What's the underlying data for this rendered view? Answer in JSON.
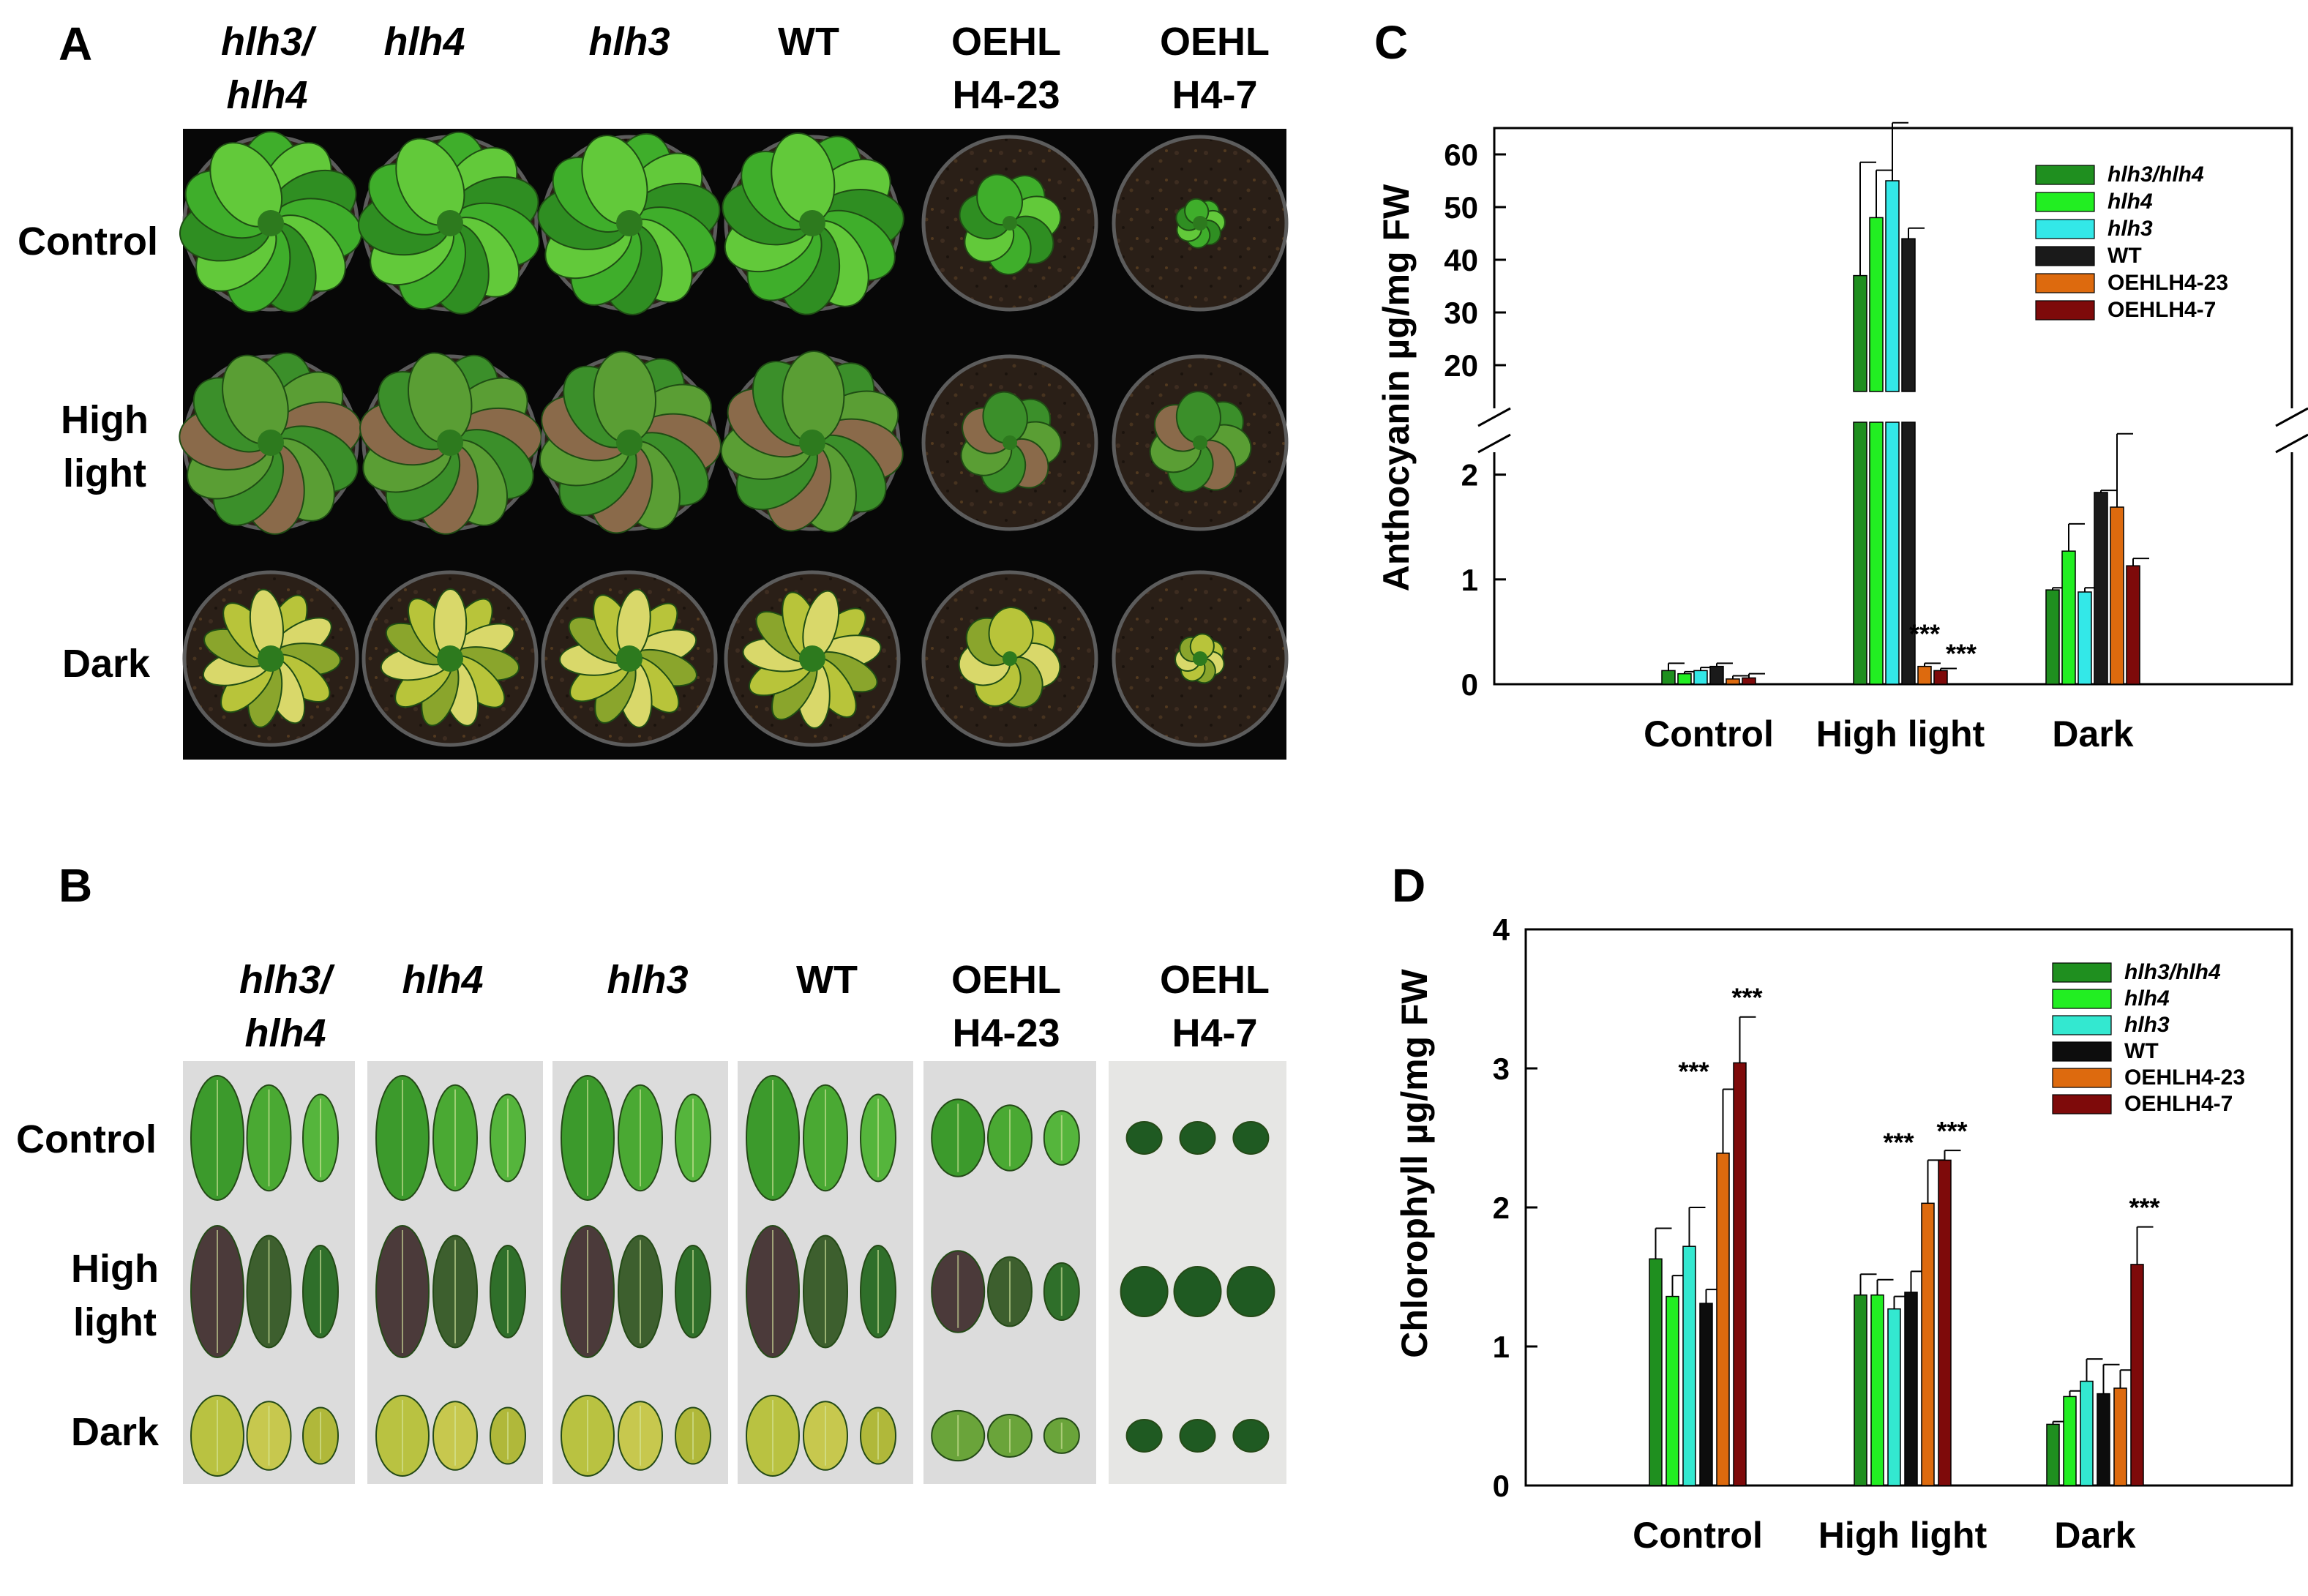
{
  "panel_a": {
    "letter": "A",
    "columns": [
      {
        "line1": "hlh3/",
        "line2": "hlh4",
        "italic": true
      },
      {
        "line1": "hlh4",
        "line2": "",
        "italic": true
      },
      {
        "line1": "hlh3",
        "line2": "",
        "italic": true
      },
      {
        "line1": "WT",
        "line2": "",
        "italic": false
      },
      {
        "line1": "OEHL",
        "line2": "H4-23",
        "italic": false
      },
      {
        "line1": "OEHL",
        "line2": "H4-7",
        "italic": false
      }
    ],
    "rows": [
      {
        "line1": "Control",
        "line2": ""
      },
      {
        "line1": "High",
        "line2": "light"
      },
      {
        "line1": "Dark",
        "line2": ""
      }
    ]
  },
  "panel_b": {
    "letter": "B",
    "columns": [
      {
        "line1": "hlh3/",
        "line2": "hlh4",
        "italic": true
      },
      {
        "line1": "hlh4",
        "line2": "",
        "italic": true
      },
      {
        "line1": "hlh3",
        "line2": "",
        "italic": true
      },
      {
        "line1": "WT",
        "line2": "",
        "italic": false
      },
      {
        "line1": "OEHL",
        "line2": "H4-23",
        "italic": false
      },
      {
        "line1": "OEHL",
        "line2": "H4-7",
        "italic": false
      }
    ],
    "rows": [
      {
        "line1": "Control",
        "line2": ""
      },
      {
        "line1": "High",
        "line2": "light"
      },
      {
        "line1": "Dark",
        "line2": ""
      }
    ]
  },
  "colors": {
    "hlh3_hlh4": "#1f8f1f",
    "hlh4": "#22ee22",
    "hlh3": "#33e8e8",
    "WT": "#1a1a1a",
    "OEHLH4_23": "#dd6a0e",
    "OEHLH4_7": "#7e0a0a"
  },
  "chart_data": [
    {
      "panel": "C",
      "type": "bar",
      "ylabel": "Anthocyanin µg/mg FW",
      "categories": [
        "Control",
        "High light",
        "Dark"
      ],
      "broken_axis": true,
      "lower_ylim": [
        0,
        2.5
      ],
      "upper_ylim": [
        15,
        65
      ],
      "lower_ticks": [
        0,
        1,
        2
      ],
      "upper_ticks": [
        20,
        30,
        40,
        50,
        60
      ],
      "series": [
        {
          "name": "hlh3/hlh4",
          "italic": true,
          "color": "#1f8f1f",
          "values": [
            0.13,
            37.0,
            0.9
          ],
          "errors": [
            0.07,
            21.5,
            0.02
          ],
          "sig": [
            "",
            "",
            ""
          ]
        },
        {
          "name": "hlh4",
          "italic": true,
          "color": "#22ee22",
          "values": [
            0.1,
            48.0,
            1.27
          ],
          "errors": [
            0.02,
            9.0,
            0.26
          ],
          "sig": [
            "",
            "",
            ""
          ]
        },
        {
          "name": "hlh3",
          "italic": true,
          "color": "#33e8e8",
          "values": [
            0.13,
            55.0,
            0.88
          ],
          "errors": [
            0.03,
            11.0,
            0.04
          ],
          "sig": [
            "",
            "",
            ""
          ]
        },
        {
          "name": "WT",
          "italic": false,
          "color": "#1a1a1a",
          "values": [
            0.17,
            44.0,
            1.83
          ],
          "errors": [
            0.03,
            2.0,
            0.02
          ],
          "sig": [
            "",
            "",
            ""
          ]
        },
        {
          "name": "OEHLH4-23",
          "italic": false,
          "color": "#dd6a0e",
          "values": [
            0.05,
            0.17,
            1.69
          ],
          "errors": [
            0.03,
            0.03,
            0.7
          ],
          "sig": [
            "",
            "***",
            ""
          ]
        },
        {
          "name": "OEHLH4-7",
          "italic": false,
          "color": "#7e0a0a",
          "values": [
            0.06,
            0.13,
            1.13
          ],
          "errors": [
            0.04,
            0.02,
            0.07
          ],
          "sig": [
            "",
            "***",
            ""
          ]
        }
      ]
    },
    {
      "panel": "D",
      "type": "bar",
      "ylabel": "Chlorophyll µg/mg FW",
      "categories": [
        "Control",
        "High light",
        "Dark"
      ],
      "ylim": [
        0,
        4
      ],
      "ticks": [
        0,
        1,
        2,
        3,
        4
      ],
      "series": [
        {
          "name": "hlh3/hlh4",
          "italic": true,
          "color": "#1f8f1f",
          "values": [
            1.63,
            1.37,
            0.44
          ],
          "errors": [
            0.22,
            0.15,
            0.02
          ],
          "sig": [
            "",
            "",
            ""
          ]
        },
        {
          "name": "hlh4",
          "italic": true,
          "color": "#22ee22",
          "values": [
            1.36,
            1.37,
            0.64
          ],
          "errors": [
            0.15,
            0.11,
            0.04
          ],
          "sig": [
            "",
            "",
            ""
          ]
        },
        {
          "name": "hlh3",
          "italic": true,
          "color": "#33e8d0",
          "values": [
            1.72,
            1.27,
            0.75
          ],
          "errors": [
            0.28,
            0.09,
            0.16
          ],
          "sig": [
            "",
            "",
            ""
          ]
        },
        {
          "name": "WT",
          "italic": false,
          "color": "#0d0d0d",
          "values": [
            1.31,
            1.39,
            0.66
          ],
          "errors": [
            0.1,
            0.15,
            0.21
          ],
          "sig": [
            "",
            "",
            ""
          ]
        },
        {
          "name": "OEHLH4-23",
          "italic": false,
          "color": "#dd6a0e",
          "values": [
            2.39,
            2.03,
            0.7
          ],
          "errors": [
            0.46,
            0.31,
            0.13
          ],
          "sig": [
            "***",
            "***",
            ""
          ]
        },
        {
          "name": "OEHLH4-7",
          "italic": false,
          "color": "#7e0a0a",
          "values": [
            3.04,
            2.34,
            1.59
          ],
          "errors": [
            0.33,
            0.07,
            0.27
          ],
          "sig": [
            "***",
            "***",
            "***"
          ]
        }
      ]
    }
  ]
}
